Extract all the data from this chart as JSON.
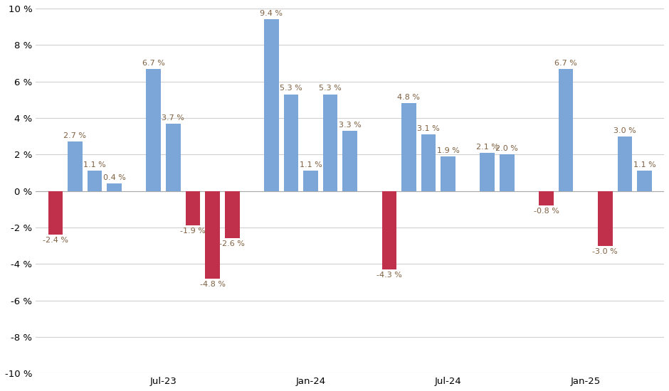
{
  "bars": [
    {
      "x": 1,
      "value": -2.4,
      "color": "#c0304a"
    },
    {
      "x": 2,
      "value": 2.7,
      "color": "#7ca6d8"
    },
    {
      "x": 3,
      "value": 1.1,
      "color": "#7ca6d8"
    },
    {
      "x": 4,
      "value": 0.4,
      "color": "#7ca6d8"
    },
    {
      "x": 6,
      "value": 6.7,
      "color": "#7ca6d8"
    },
    {
      "x": 7,
      "value": 3.7,
      "color": "#7ca6d8"
    },
    {
      "x": 8,
      "value": -1.9,
      "color": "#c0304a"
    },
    {
      "x": 9,
      "value": -4.8,
      "color": "#c0304a"
    },
    {
      "x": 10,
      "value": -2.6,
      "color": "#c0304a"
    },
    {
      "x": 12,
      "value": 9.4,
      "color": "#7ca6d8"
    },
    {
      "x": 13,
      "value": 5.3,
      "color": "#7ca6d8"
    },
    {
      "x": 14,
      "value": 1.1,
      "color": "#7ca6d8"
    },
    {
      "x": 15,
      "value": 5.3,
      "color": "#7ca6d8"
    },
    {
      "x": 16,
      "value": 3.3,
      "color": "#7ca6d8"
    },
    {
      "x": 18,
      "value": -4.3,
      "color": "#c0304a"
    },
    {
      "x": 19,
      "value": 4.8,
      "color": "#7ca6d8"
    },
    {
      "x": 20,
      "value": 3.1,
      "color": "#7ca6d8"
    },
    {
      "x": 21,
      "value": 1.9,
      "color": "#7ca6d8"
    },
    {
      "x": 23,
      "value": 2.1,
      "color": "#7ca6d8"
    },
    {
      "x": 24,
      "value": 2.0,
      "color": "#7ca6d8"
    },
    {
      "x": 26,
      "value": -0.8,
      "color": "#c0304a"
    },
    {
      "x": 27,
      "value": 6.7,
      "color": "#7ca6d8"
    },
    {
      "x": 29,
      "value": -3.0,
      "color": "#c0304a"
    },
    {
      "x": 30,
      "value": 3.0,
      "color": "#7ca6d8"
    },
    {
      "x": 31,
      "value": 1.1,
      "color": "#7ca6d8"
    }
  ],
  "xticks": [
    {
      "x": 6.5,
      "label": "Jul-23"
    },
    {
      "x": 14.0,
      "label": "Jan-24"
    },
    {
      "x": 21.0,
      "label": "Jul-24"
    },
    {
      "x": 28.0,
      "label": "Jan-25"
    }
  ],
  "ylim": [
    -10,
    10
  ],
  "yticks": [
    -10,
    -8,
    -6,
    -4,
    -2,
    0,
    2,
    4,
    6,
    8,
    10
  ],
  "bar_width": 0.75,
  "background_color": "#ffffff",
  "grid_color": "#d0d0d0",
  "label_fontsize": 8.0,
  "tick_fontsize": 9.5,
  "label_color": "#806040"
}
